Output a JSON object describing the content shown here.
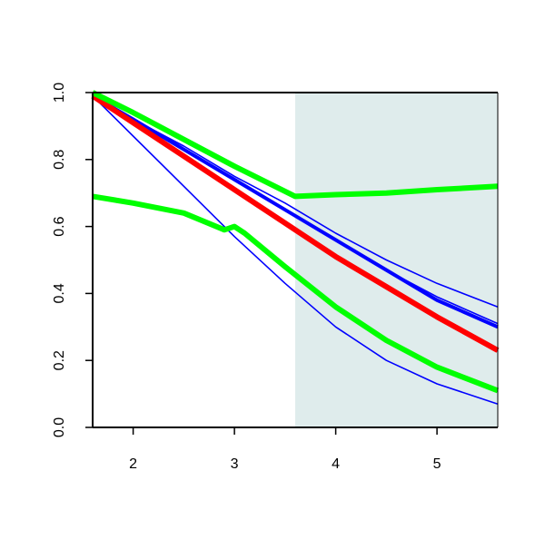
{
  "chart_data": {
    "type": "line",
    "title": "",
    "xlabel": "",
    "ylabel": "",
    "xlim": [
      1.6,
      5.6
    ],
    "ylim": [
      0.0,
      1.0
    ],
    "x_ticks": [
      2,
      3,
      4,
      5
    ],
    "x_tick_labels": [
      "2",
      "3",
      "4",
      "5"
    ],
    "y_ticks": [
      0.0,
      0.2,
      0.4,
      0.6,
      0.8,
      1.0
    ],
    "y_tick_labels": [
      "0.0",
      "0.2",
      "0.4",
      "0.6",
      "0.8",
      "1.0"
    ],
    "grid": false,
    "legend": "none",
    "shaded_region": {
      "x_start": 3.6,
      "x_end": 5.6,
      "color": "#dfecec"
    },
    "series": [
      {
        "color": "#0000ff",
        "weight": "thin",
        "x": [
          1.6,
          2.0,
          2.5,
          3.0,
          3.5,
          4.0,
          4.5,
          5.0,
          5.6
        ],
        "y": [
          0.99,
          0.87,
          0.72,
          0.57,
          0.43,
          0.3,
          0.2,
          0.13,
          0.07
        ]
      },
      {
        "color": "#0000ff",
        "weight": "thin",
        "x": [
          1.6,
          2.0,
          2.5,
          3.0,
          3.5,
          4.0,
          4.5,
          5.0,
          5.6
        ],
        "y": [
          0.99,
          0.92,
          0.84,
          0.75,
          0.67,
          0.58,
          0.5,
          0.43,
          0.36
        ]
      },
      {
        "color": "#0000ff",
        "weight": "medium",
        "x": [
          1.6,
          2.0,
          2.5,
          3.0,
          3.5,
          4.0,
          4.5,
          5.0,
          5.6
        ],
        "y": [
          0.99,
          0.92,
          0.83,
          0.74,
          0.65,
          0.56,
          0.47,
          0.38,
          0.3
        ]
      },
      {
        "color": "#0000ff",
        "weight": "thin",
        "x": [
          1.6,
          2.0,
          2.5,
          3.0,
          3.5,
          4.0,
          4.5,
          5.0,
          5.6
        ],
        "y": [
          0.99,
          0.92,
          0.83,
          0.74,
          0.65,
          0.56,
          0.47,
          0.39,
          0.31
        ]
      },
      {
        "color": "#ff0000",
        "weight": "thick",
        "x": [
          1.6,
          2.0,
          2.5,
          3.0,
          3.5,
          4.0,
          4.5,
          5.0,
          5.6
        ],
        "y": [
          0.99,
          0.91,
          0.81,
          0.71,
          0.61,
          0.51,
          0.42,
          0.33,
          0.23
        ]
      },
      {
        "color": "#00ff00",
        "weight": "thick",
        "x": [
          1.6,
          2.0,
          2.5,
          3.0,
          3.6,
          4.0,
          4.5,
          5.0,
          5.6
        ],
        "y": [
          1.0,
          0.94,
          0.86,
          0.78,
          0.69,
          0.695,
          0.7,
          0.71,
          0.72
        ]
      },
      {
        "color": "#00ff00",
        "weight": "thick",
        "x": [
          1.6,
          2.0,
          2.5,
          2.9,
          3.0,
          3.1,
          3.5,
          4.0,
          4.5,
          5.0,
          5.6
        ],
        "y": [
          0.69,
          0.67,
          0.64,
          0.59,
          0.6,
          0.58,
          0.48,
          0.36,
          0.26,
          0.18,
          0.11
        ]
      }
    ]
  }
}
